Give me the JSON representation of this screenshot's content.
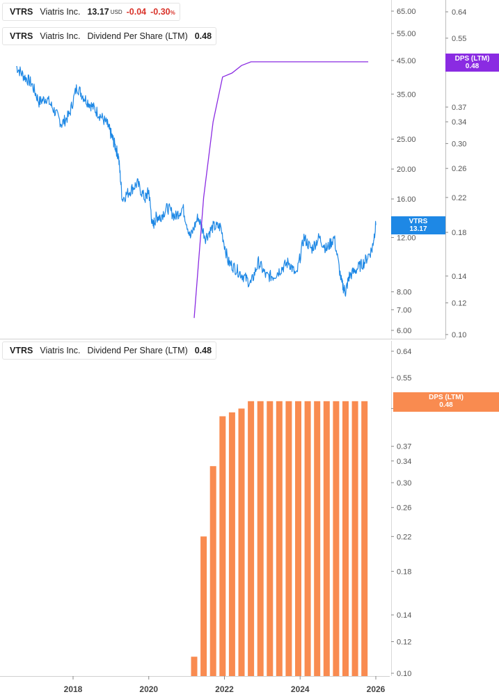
{
  "legend_top_price": {
    "ticker": "VTRS",
    "name": "Viatris Inc.",
    "price": "13.17",
    "currency": "USD",
    "change": "-0.04",
    "change_pct": "-0.30",
    "pct_sign": "%",
    "color": "#1e88e5"
  },
  "legend_top_dps": {
    "ticker": "VTRS",
    "name": "Viatris Inc.",
    "metric": "Dividend Per Share (LTM)",
    "value": "0.48",
    "color": "#8a2be2"
  },
  "legend_bottom_dps": {
    "ticker": "VTRS",
    "name": "Viatris Inc.",
    "metric": "Dividend Per Share (LTM)",
    "value": "0.48",
    "color": "#f98b50"
  },
  "tags": {
    "price": {
      "label": "VTRS",
      "value": "13.17",
      "color": "#1e88e5"
    },
    "dps_top": {
      "label": "DPS (LTM)",
      "value": "0.48",
      "color": "#8a2be2"
    },
    "dps_bottom": {
      "label": "DPS (LTM)",
      "value": "0.48",
      "color": "#f98b50"
    }
  },
  "chart_data": [
    {
      "type": "line",
      "scale": "log",
      "price_axis_ticks": [
        "65.00",
        "55.00",
        "45.00",
        "35.00",
        "25.00",
        "20.00",
        "16.00",
        "12.00",
        "8.00",
        "7.00",
        "6.00"
      ],
      "dps_axis_ticks": [
        "0.64",
        "0.55",
        "0.37",
        "0.34",
        "0.30",
        "0.26",
        "0.22",
        "0.18",
        "0.14",
        "0.12",
        "0.10"
      ],
      "series": [
        {
          "name": "VTRS",
          "color": "#1e88e5",
          "axis": "price",
          "x": [
            2016.5,
            2016.7,
            2016.9,
            2017.1,
            2017.3,
            2017.5,
            2017.7,
            2017.9,
            2018.1,
            2018.3,
            2018.5,
            2018.7,
            2018.9,
            2019.0,
            2019.1,
            2019.2,
            2019.3,
            2019.5,
            2019.7,
            2019.9,
            2020.0,
            2020.1,
            2020.2,
            2020.3,
            2020.5,
            2020.7,
            2020.9,
            2021.1,
            2021.3,
            2021.5,
            2021.7,
            2021.9,
            2022.1,
            2022.3,
            2022.5,
            2022.7,
            2022.9,
            2023.1,
            2023.3,
            2023.5,
            2023.7,
            2023.9,
            2024.1,
            2024.3,
            2024.5,
            2024.7,
            2024.9,
            2025.1,
            2025.2,
            2025.3,
            2025.5,
            2025.7,
            2025.9,
            2026.0
          ],
          "y": [
            43,
            40,
            38,
            33,
            34,
            31,
            28,
            30,
            37,
            34,
            32,
            30,
            28,
            26,
            24,
            22,
            16,
            17,
            18,
            16,
            17,
            13,
            14,
            14,
            15,
            14,
            15,
            12,
            14,
            12,
            13,
            13,
            10,
            9.5,
            9,
            8.5,
            10,
            9,
            9,
            9.5,
            10,
            9,
            12,
            11,
            12,
            11,
            12,
            8.5,
            8,
            9,
            9.5,
            10,
            11,
            13.17
          ]
        },
        {
          "name": "DPS (LTM)",
          "color": "#8a2be2",
          "axis": "dps",
          "x": [
            2021.2,
            2021.45,
            2021.7,
            2021.95,
            2022.2,
            2022.45,
            2022.7,
            2023.0,
            2024.0,
            2025.0,
            2025.8
          ],
          "y": [
            0.11,
            0.22,
            0.34,
            0.44,
            0.45,
            0.47,
            0.48,
            0.48,
            0.48,
            0.48,
            0.48
          ]
        }
      ]
    },
    {
      "type": "bar",
      "scale": "log",
      "axis_ticks": [
        "0.64",
        "0.55",
        "0.46",
        "0.37",
        "0.34",
        "0.30",
        "0.26",
        "0.22",
        "0.18",
        "0.14",
        "0.12",
        "0.10"
      ],
      "x_ticks": [
        "2018",
        "2020",
        "2022",
        "2024",
        "2026"
      ],
      "series": [
        {
          "name": "DPS (LTM)",
          "color": "#f98b50",
          "x": [
            2021.2,
            2021.45,
            2021.7,
            2021.95,
            2022.2,
            2022.45,
            2022.7,
            2022.95,
            2023.2,
            2023.45,
            2023.7,
            2023.95,
            2024.2,
            2024.45,
            2024.7,
            2024.95,
            2025.2,
            2025.45,
            2025.7
          ],
          "values": [
            0.11,
            0.22,
            0.33,
            0.44,
            0.45,
            0.46,
            0.48,
            0.48,
            0.48,
            0.48,
            0.48,
            0.48,
            0.48,
            0.48,
            0.48,
            0.48,
            0.48,
            0.48,
            0.48
          ]
        }
      ]
    }
  ]
}
